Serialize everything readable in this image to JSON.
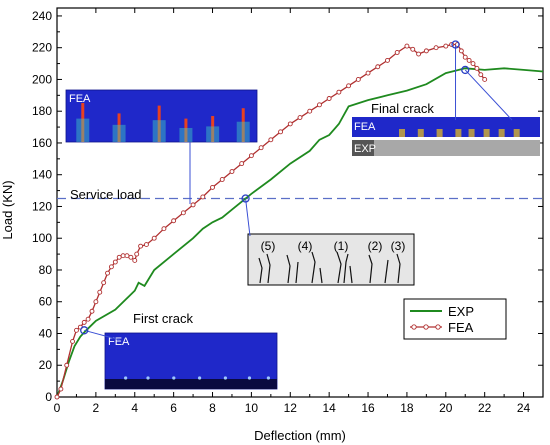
{
  "chart_data": {
    "type": "line",
    "xlabel": "Deflection (mm)",
    "ylabel": "Load (KN)",
    "xlim": [
      0,
      25
    ],
    "ylim": [
      0,
      245
    ],
    "x_ticks": [
      0,
      2,
      4,
      6,
      8,
      10,
      12,
      14,
      16,
      18,
      20,
      22,
      24
    ],
    "y_ticks": [
      0,
      20,
      40,
      60,
      80,
      100,
      120,
      140,
      160,
      180,
      200,
      220,
      240
    ],
    "legend_position": "bottom-right",
    "series": [
      {
        "name": "EXP",
        "color": "#1f8a1f",
        "marker": "none",
        "points": [
          [
            0,
            0
          ],
          [
            0.3,
            10
          ],
          [
            0.6,
            22
          ],
          [
            0.9,
            32
          ],
          [
            1.2,
            38
          ],
          [
            1.5,
            42
          ],
          [
            2,
            48
          ],
          [
            3,
            55
          ],
          [
            4,
            67
          ],
          [
            4.2,
            72
          ],
          [
            4.5,
            70
          ],
          [
            5,
            80
          ],
          [
            6,
            90
          ],
          [
            7,
            100
          ],
          [
            7.5,
            106
          ],
          [
            8,
            110
          ],
          [
            8.5,
            113
          ],
          [
            9,
            118
          ],
          [
            9.5,
            123
          ],
          [
            10,
            128
          ],
          [
            11,
            137
          ],
          [
            12,
            147
          ],
          [
            13,
            155
          ],
          [
            13.5,
            162
          ],
          [
            14,
            165
          ],
          [
            14.5,
            172
          ],
          [
            15,
            183
          ],
          [
            16,
            187
          ],
          [
            17,
            190
          ],
          [
            18,
            193
          ],
          [
            19,
            197
          ],
          [
            20,
            204
          ],
          [
            21,
            207
          ],
          [
            22,
            206
          ],
          [
            23,
            207
          ],
          [
            24,
            206
          ],
          [
            25,
            205
          ]
        ]
      },
      {
        "name": "FEA",
        "color": "#b03030",
        "marker": "circle",
        "points": [
          [
            0,
            0
          ],
          [
            0.2,
            5
          ],
          [
            0.5,
            20
          ],
          [
            0.8,
            35
          ],
          [
            1,
            42
          ],
          [
            1.2,
            44
          ],
          [
            1.4,
            47
          ],
          [
            1.6,
            49
          ],
          [
            1.8,
            54
          ],
          [
            2,
            60
          ],
          [
            2.2,
            66
          ],
          [
            2.4,
            72
          ],
          [
            2.6,
            78
          ],
          [
            2.8,
            82
          ],
          [
            3,
            85
          ],
          [
            3.2,
            88
          ],
          [
            3.4,
            89
          ],
          [
            3.6,
            89
          ],
          [
            3.8,
            88
          ],
          [
            4,
            86
          ],
          [
            4.1,
            90
          ],
          [
            4.3,
            95
          ],
          [
            4.6,
            96
          ],
          [
            5,
            100
          ],
          [
            5.5,
            106
          ],
          [
            6,
            111
          ],
          [
            6.5,
            116
          ],
          [
            7,
            121
          ],
          [
            7.5,
            126
          ],
          [
            8,
            132
          ],
          [
            8.5,
            137
          ],
          [
            9,
            142
          ],
          [
            9.5,
            147
          ],
          [
            10,
            152
          ],
          [
            10.5,
            157
          ],
          [
            11,
            162
          ],
          [
            11.5,
            167
          ],
          [
            12,
            172
          ],
          [
            12.5,
            176
          ],
          [
            13,
            180
          ],
          [
            13.5,
            184
          ],
          [
            14,
            188
          ],
          [
            14.5,
            192
          ],
          [
            15,
            196
          ],
          [
            15.5,
            200
          ],
          [
            16,
            204
          ],
          [
            16.5,
            208
          ],
          [
            17,
            212
          ],
          [
            17.5,
            217
          ],
          [
            18,
            221
          ],
          [
            18.3,
            219
          ],
          [
            18.6,
            216
          ],
          [
            19,
            218
          ],
          [
            19.5,
            220
          ],
          [
            20,
            221
          ],
          [
            20.3,
            222
          ],
          [
            20.6,
            222
          ],
          [
            20.8,
            218
          ],
          [
            21,
            214
          ],
          [
            21.2,
            212
          ],
          [
            21.4,
            210
          ],
          [
            21.6,
            207
          ],
          [
            21.8,
            203
          ],
          [
            22,
            200
          ]
        ]
      }
    ],
    "reference_line": {
      "label": "Service load",
      "y": 125
    },
    "annotations": [
      {
        "label": "First crack"
      },
      {
        "label": "Final crack"
      }
    ],
    "insets": [
      {
        "label": "FEA"
      },
      {
        "label": "FEA"
      },
      {
        "label": "FEA"
      },
      {
        "label": "EXP"
      }
    ],
    "crack_labels": [
      "(5)",
      "(4)",
      "(1)",
      "(2)",
      "(3)"
    ]
  }
}
